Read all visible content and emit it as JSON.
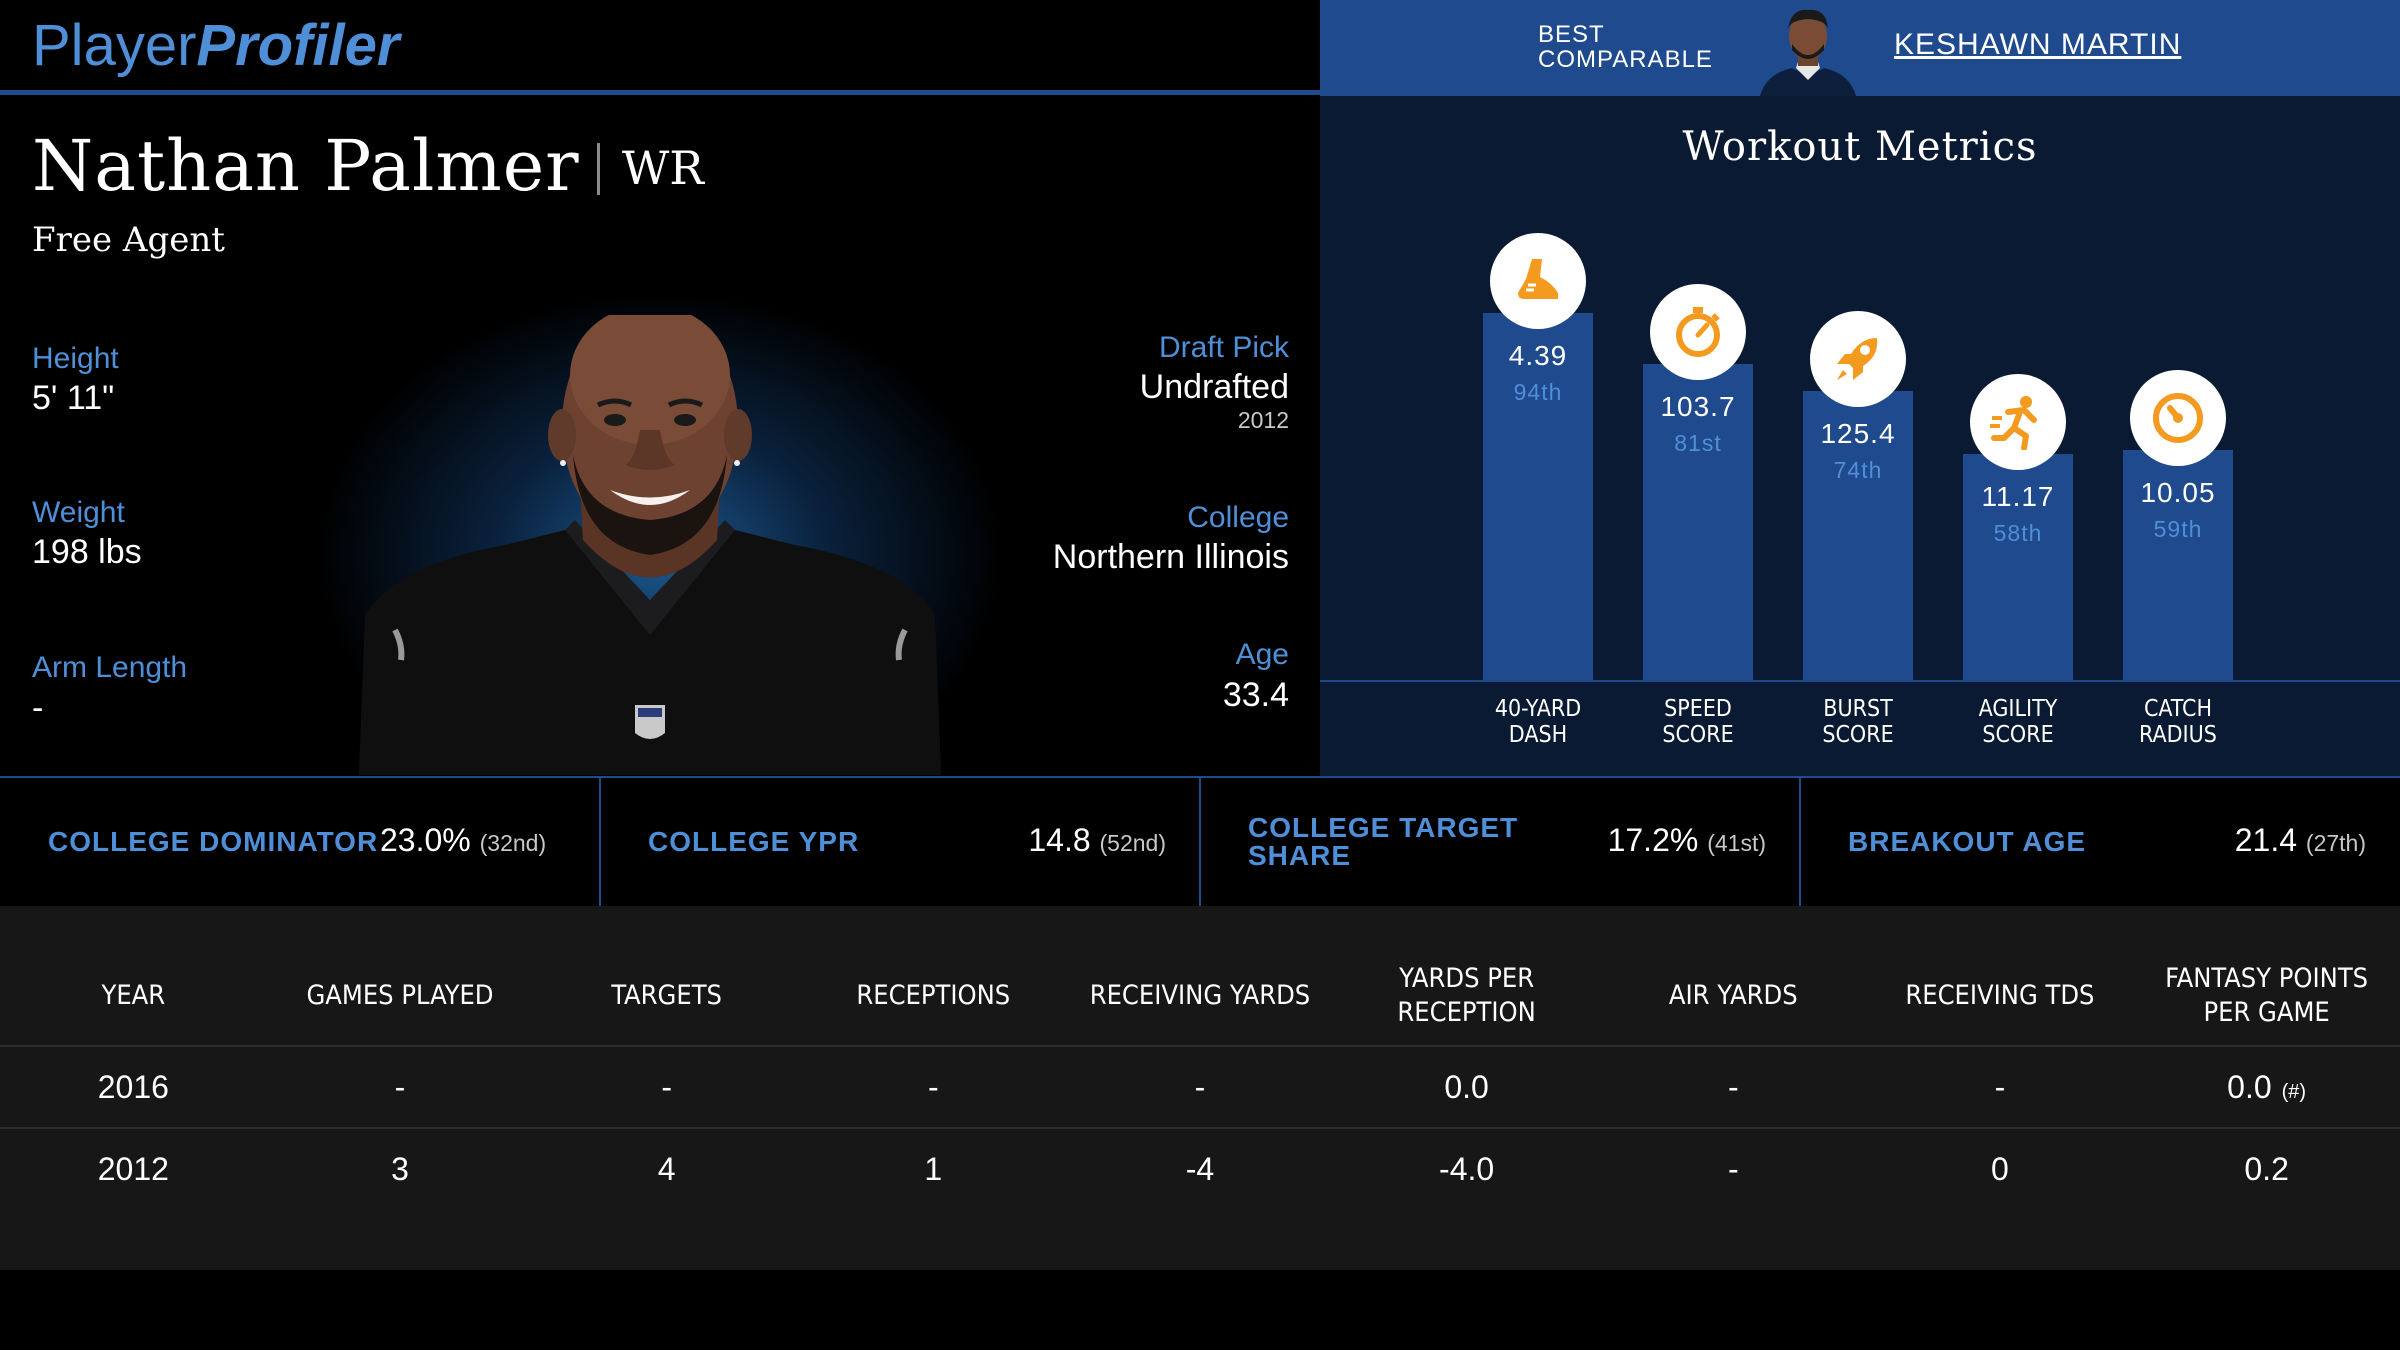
{
  "logo": {
    "part1": "Player",
    "part2": "Profiler"
  },
  "comparable": {
    "label_line1": "BEST",
    "label_line2": "COMPARABLE",
    "name": "KESHAWN MARTIN"
  },
  "player": {
    "name": "Nathan Palmer",
    "position": "WR",
    "status": "Free Agent",
    "height_label": "Height",
    "height": "5' 11\"",
    "weight_label": "Weight",
    "weight": "198 lbs",
    "arm_label": "Arm Length",
    "arm": "-",
    "draft_label": "Draft Pick",
    "draft": "Undrafted",
    "draft_year": "2012",
    "college_label": "College",
    "college": "Northern Illinois",
    "age_label": "Age",
    "age": "33.4"
  },
  "workout": {
    "title": "Workout Metrics",
    "metrics": [
      {
        "value": "4.39",
        "rank": "94th",
        "label1": "40-YARD",
        "label2": "DASH",
        "icon": "shoe-icon",
        "percentile": 94
      },
      {
        "value": "103.7",
        "rank": "81st",
        "label1": "SPEED",
        "label2": "SCORE",
        "icon": "stopwatch-icon",
        "percentile": 81
      },
      {
        "value": "125.4",
        "rank": "74th",
        "label1": "BURST",
        "label2": "SCORE",
        "icon": "rocket-icon",
        "percentile": 74
      },
      {
        "value": "11.17",
        "rank": "58th",
        "label1": "AGILITY",
        "label2": "SCORE",
        "icon": "runner-icon",
        "percentile": 58
      },
      {
        "value": "10.05",
        "rank": "59th",
        "label1": "CATCH",
        "label2": "RADIUS",
        "icon": "target-icon",
        "percentile": 59
      }
    ]
  },
  "college_metrics": [
    {
      "label1": "COLLEGE DOMINATOR",
      "label2": "",
      "value": "23.0%",
      "rank": "(32nd)"
    },
    {
      "label1": "COLLEGE YPR",
      "label2": "",
      "value": "14.8",
      "rank": "(52nd)"
    },
    {
      "label1": "COLLEGE TARGET",
      "label2": "SHARE",
      "value": "17.2%",
      "rank": "(41st)"
    },
    {
      "label1": "BREAKOUT AGE",
      "label2": "",
      "value": "21.4",
      "rank": "(27th)"
    }
  ],
  "season_table": {
    "headers": [
      "YEAR",
      "GAMES PLAYED",
      "TARGETS",
      "RECEPTIONS",
      "RECEIVING YARDS",
      "YARDS PER RECEPTION",
      "AIR YARDS",
      "RECEIVING TDS",
      "FANTASY POINTS PER GAME"
    ],
    "rows": [
      [
        "2016",
        "-",
        "-",
        "-",
        "-",
        "0.0",
        "-",
        "-",
        "0.0"
      ],
      [
        "2012",
        "3",
        "4",
        "1",
        "-4",
        "-4.0",
        "-",
        "0",
        "0.2"
      ]
    ],
    "hash_note": "(#)"
  },
  "colors": {
    "accent": "#4f8fd8",
    "bar": "#1f4a8d",
    "icon": "#f39a1f"
  }
}
